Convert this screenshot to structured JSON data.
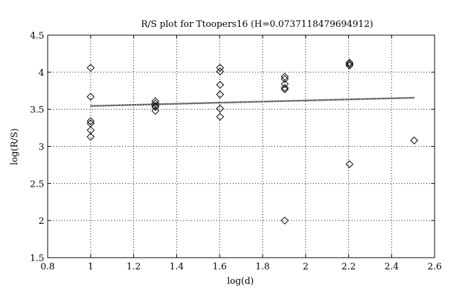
{
  "chart_data": {
    "type": "scatter",
    "title": "R/S plot for Ttoopers16 (H=0.0737118479694912)",
    "xlabel": "log(d)",
    "ylabel": "log(R/S)",
    "xlim": [
      0.8,
      2.6
    ],
    "ylim": [
      1.5,
      4.5
    ],
    "xticks": [
      0.8,
      1.0,
      1.2,
      1.4,
      1.6,
      1.8,
      2.0,
      2.2,
      2.4,
      2.6
    ],
    "xtick_labels": [
      "0.8",
      "1",
      "1.2",
      "1.4",
      "1.6",
      "1.8",
      "2",
      "2.2",
      "2.4",
      "2.6"
    ],
    "yticks": [
      1.5,
      2.0,
      2.5,
      3.0,
      3.5,
      4.0,
      4.5
    ],
    "ytick_labels": [
      "1.5",
      "2",
      "2.5",
      "3",
      "3.5",
      "4",
      "4.5"
    ],
    "grid": true,
    "marker": "diamond",
    "points": [
      {
        "x": 1.0,
        "y": 4.06
      },
      {
        "x": 1.0,
        "y": 3.67
      },
      {
        "x": 1.0,
        "y": 3.34
      },
      {
        "x": 1.0,
        "y": 3.31
      },
      {
        "x": 1.0,
        "y": 3.22
      },
      {
        "x": 1.0,
        "y": 3.13
      },
      {
        "x": 1.301,
        "y": 3.61
      },
      {
        "x": 1.301,
        "y": 3.58
      },
      {
        "x": 1.301,
        "y": 3.55
      },
      {
        "x": 1.301,
        "y": 3.53
      },
      {
        "x": 1.301,
        "y": 3.48
      },
      {
        "x": 1.602,
        "y": 4.06
      },
      {
        "x": 1.602,
        "y": 4.01
      },
      {
        "x": 1.602,
        "y": 3.83
      },
      {
        "x": 1.602,
        "y": 3.7
      },
      {
        "x": 1.602,
        "y": 3.51
      },
      {
        "x": 1.602,
        "y": 3.4
      },
      {
        "x": 1.903,
        "y": 3.94
      },
      {
        "x": 1.903,
        "y": 3.91
      },
      {
        "x": 1.903,
        "y": 3.84
      },
      {
        "x": 1.903,
        "y": 3.79
      },
      {
        "x": 1.903,
        "y": 3.77
      },
      {
        "x": 1.903,
        "y": 2.0
      },
      {
        "x": 2.204,
        "y": 4.13
      },
      {
        "x": 2.204,
        "y": 4.11
      },
      {
        "x": 2.204,
        "y": 4.09
      },
      {
        "x": 2.204,
        "y": 2.76
      },
      {
        "x": 2.505,
        "y": 3.08
      }
    ],
    "fit_line": {
      "x": [
        1.0,
        2.505
      ],
      "y": [
        3.545,
        3.656
      ],
      "style": "dotted"
    }
  }
}
